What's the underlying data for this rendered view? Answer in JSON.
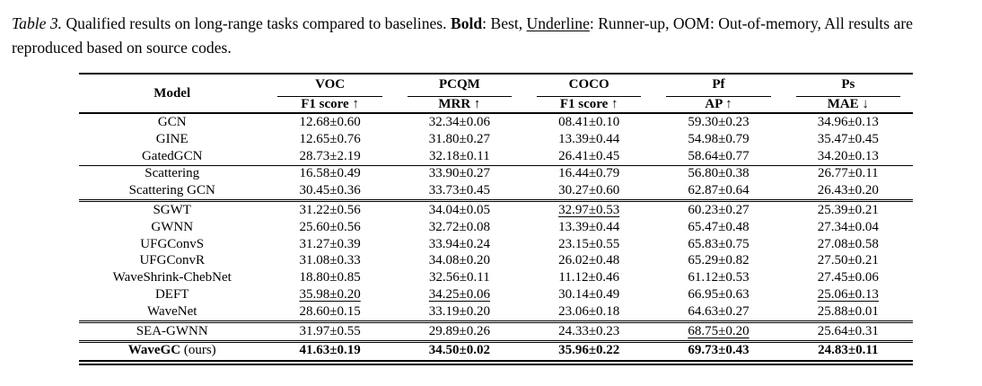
{
  "caption": {
    "segments": [
      {
        "text": "Table 3.",
        "style": "italic"
      },
      {
        "text": " Qualified results on long-range tasks compared to baselines. ",
        "style": "normal"
      },
      {
        "text": "Bold",
        "style": "bold"
      },
      {
        "text": ": Best, ",
        "style": "normal"
      },
      {
        "text": "Underline",
        "style": "underline"
      },
      {
        "text": ": Runner-up, OOM: Out-of-memory, All results are reproduced based on source codes.",
        "style": "normal"
      }
    ]
  },
  "table": {
    "model_header": "Model",
    "col_groups": [
      {
        "dataset": "VOC",
        "metric": "F1 score ↑"
      },
      {
        "dataset": "PCQM",
        "metric": "MRR ↑"
      },
      {
        "dataset": "COCO",
        "metric": "F1 score ↑"
      },
      {
        "dataset": "Pf",
        "metric": "AP ↑"
      },
      {
        "dataset": "Ps",
        "metric": "MAE ↓"
      }
    ],
    "groups": [
      {
        "rows": [
          {
            "model": "GCN",
            "values": [
              {
                "text": "12.68±0.60"
              },
              {
                "text": "32.34±0.06"
              },
              {
                "text": "08.41±0.10"
              },
              {
                "text": "59.30±0.23"
              },
              {
                "text": "34.96±0.13"
              }
            ]
          },
          {
            "model": "GINE",
            "values": [
              {
                "text": "12.65±0.76"
              },
              {
                "text": "31.80±0.27"
              },
              {
                "text": "13.39±0.44"
              },
              {
                "text": "54.98±0.79"
              },
              {
                "text": "35.47±0.45"
              }
            ]
          },
          {
            "model": "GatedGCN",
            "values": [
              {
                "text": "28.73±2.19"
              },
              {
                "text": "32.18±0.11"
              },
              {
                "text": "26.41±0.45"
              },
              {
                "text": "58.64±0.77"
              },
              {
                "text": "34.20±0.13"
              }
            ]
          }
        ]
      },
      {
        "rows": [
          {
            "model": "Scattering",
            "values": [
              {
                "text": "16.58±0.49"
              },
              {
                "text": "33.90±0.27"
              },
              {
                "text": "16.44±0.79"
              },
              {
                "text": "56.80±0.38"
              },
              {
                "text": "26.77±0.11"
              }
            ]
          },
          {
            "model": "Scattering GCN",
            "values": [
              {
                "text": "30.45±0.36"
              },
              {
                "text": "33.73±0.45"
              },
              {
                "text": "30.27±0.60"
              },
              {
                "text": "62.87±0.64"
              },
              {
                "text": "26.43±0.20"
              }
            ]
          }
        ]
      },
      {
        "rows": [
          {
            "model": "SGWT",
            "values": [
              {
                "text": "31.22±0.56"
              },
              {
                "text": "34.04±0.05"
              },
              {
                "text": "32.97±0.53",
                "style": "underline"
              },
              {
                "text": "60.23±0.27"
              },
              {
                "text": "25.39±0.21"
              }
            ]
          },
          {
            "model": "GWNN",
            "values": [
              {
                "text": "25.60±0.56"
              },
              {
                "text": "32.72±0.08"
              },
              {
                "text": "13.39±0.44"
              },
              {
                "text": "65.47±0.48"
              },
              {
                "text": "27.34±0.04"
              }
            ]
          },
          {
            "model": "UFGConvS",
            "values": [
              {
                "text": "31.27±0.39"
              },
              {
                "text": "33.94±0.24"
              },
              {
                "text": "23.15±0.55"
              },
              {
                "text": "65.83±0.75"
              },
              {
                "text": "27.08±0.58"
              }
            ]
          },
          {
            "model": "UFGConvR",
            "values": [
              {
                "text": "31.08±0.33"
              },
              {
                "text": "34.08±0.20"
              },
              {
                "text": "26.02±0.48"
              },
              {
                "text": "65.29±0.82"
              },
              {
                "text": "27.50±0.21"
              }
            ]
          },
          {
            "model": "WaveShrink-ChebNet",
            "values": [
              {
                "text": "18.80±0.85"
              },
              {
                "text": "32.56±0.11"
              },
              {
                "text": "11.12±0.46"
              },
              {
                "text": "61.12±0.53"
              },
              {
                "text": "27.45±0.06"
              }
            ]
          },
          {
            "model": "DEFT",
            "values": [
              {
                "text": "35.98±0.20",
                "style": "underline"
              },
              {
                "text": "34.25±0.06",
                "style": "underline"
              },
              {
                "text": "30.14±0.49"
              },
              {
                "text": "66.95±0.63"
              },
              {
                "text": "25.06±0.13",
                "style": "underline"
              }
            ]
          },
          {
            "model": "WaveNet",
            "values": [
              {
                "text": "28.60±0.15"
              },
              {
                "text": "33.19±0.20"
              },
              {
                "text": "23.06±0.18"
              },
              {
                "text": "64.63±0.27"
              },
              {
                "text": "25.88±0.01"
              }
            ]
          }
        ]
      },
      {
        "rows": [
          {
            "model": "SEA-GWNN",
            "values": [
              {
                "text": "31.97±0.55"
              },
              {
                "text": "29.89±0.26"
              },
              {
                "text": "24.33±0.23"
              },
              {
                "text": "68.75±0.20",
                "style": "underline"
              },
              {
                "text": "25.64±0.31"
              }
            ]
          }
        ]
      },
      {
        "rows": [
          {
            "model": "WaveGC",
            "model_suffix": " (ours)",
            "bold": true,
            "values": [
              {
                "text": "41.63±0.19",
                "style": "bold"
              },
              {
                "text": "34.50±0.02",
                "style": "bold"
              },
              {
                "text": "35.96±0.22",
                "style": "bold"
              },
              {
                "text": "69.73±0.43",
                "style": "bold"
              },
              {
                "text": "24.83±0.11",
                "style": "bold"
              }
            ]
          }
        ]
      }
    ]
  }
}
